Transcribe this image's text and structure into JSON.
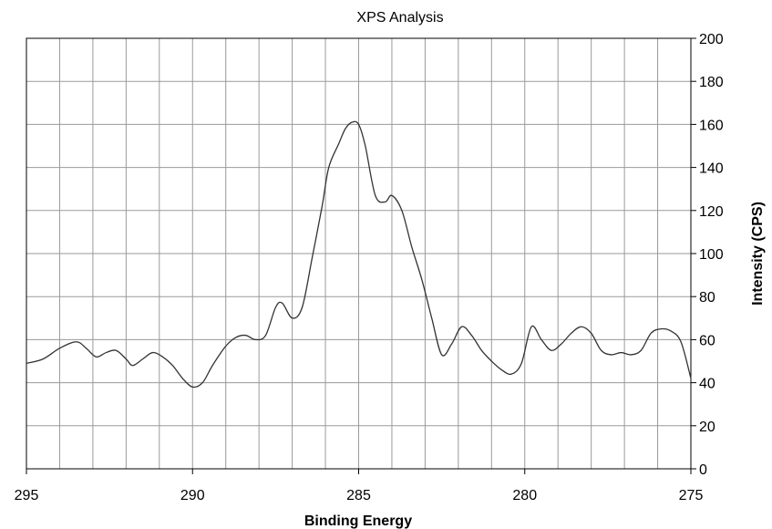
{
  "chart_data": {
    "type": "line",
    "title": "XPS Analysis",
    "xlabel": "Binding Energy",
    "ylabel": "Intensity (CPS)",
    "xlim": [
      295,
      275
    ],
    "ylim": [
      0,
      200
    ],
    "x_reversed": true,
    "x_ticks": [
      295,
      290,
      285,
      280,
      275
    ],
    "x_tick_labels": [
      "295",
      "290",
      "285",
      "280",
      "275"
    ],
    "y_ticks": [
      0,
      20,
      40,
      60,
      80,
      100,
      120,
      140,
      160,
      180,
      200
    ],
    "y_tick_labels": [
      "0",
      "20",
      "40",
      "60",
      "80",
      "100",
      "120",
      "140",
      "160",
      "180",
      "200"
    ],
    "y_axis_side": "right",
    "grid": true,
    "x_grid_step": 1,
    "y_grid_step": 20,
    "line_color": "#333333",
    "series": [
      {
        "x": [
          295.0,
          294.5,
          294.0,
          293.5,
          293.2,
          292.9,
          292.6,
          292.3,
          292.0,
          291.8,
          291.5,
          291.2,
          290.9,
          290.6,
          290.3,
          290.0,
          289.7,
          289.4,
          289.0,
          288.7,
          288.4,
          288.1,
          287.8,
          287.5,
          287.3,
          287.0,
          286.7,
          286.4,
          286.1,
          285.9,
          285.6,
          285.4,
          285.2,
          285.0,
          284.8,
          284.5,
          284.2,
          284.0,
          283.7,
          283.4,
          283.1,
          282.8,
          282.5,
          282.2,
          281.9,
          281.6,
          281.3,
          281.0,
          280.7,
          280.4,
          280.1,
          279.8,
          279.5,
          279.2,
          278.9,
          278.6,
          278.3,
          278.0,
          277.7,
          277.4,
          277.1,
          276.8,
          276.5,
          276.2,
          275.9,
          275.6,
          275.3,
          275.0
        ],
        "y": [
          49,
          51,
          56,
          59,
          56,
          52,
          54,
          55,
          51,
          48,
          51,
          54,
          52,
          48,
          42,
          38,
          40,
          48,
          57,
          61,
          62,
          60,
          62,
          75,
          77,
          70,
          75,
          98,
          122,
          140,
          151,
          158,
          161,
          160,
          150,
          127,
          124,
          127,
          120,
          103,
          88,
          70,
          53,
          58,
          66,
          62,
          55,
          50,
          46,
          44,
          49,
          66,
          60,
          55,
          58,
          63,
          66,
          63,
          55,
          53,
          54,
          53,
          55,
          63,
          65,
          64,
          59,
          42
        ]
      }
    ]
  }
}
